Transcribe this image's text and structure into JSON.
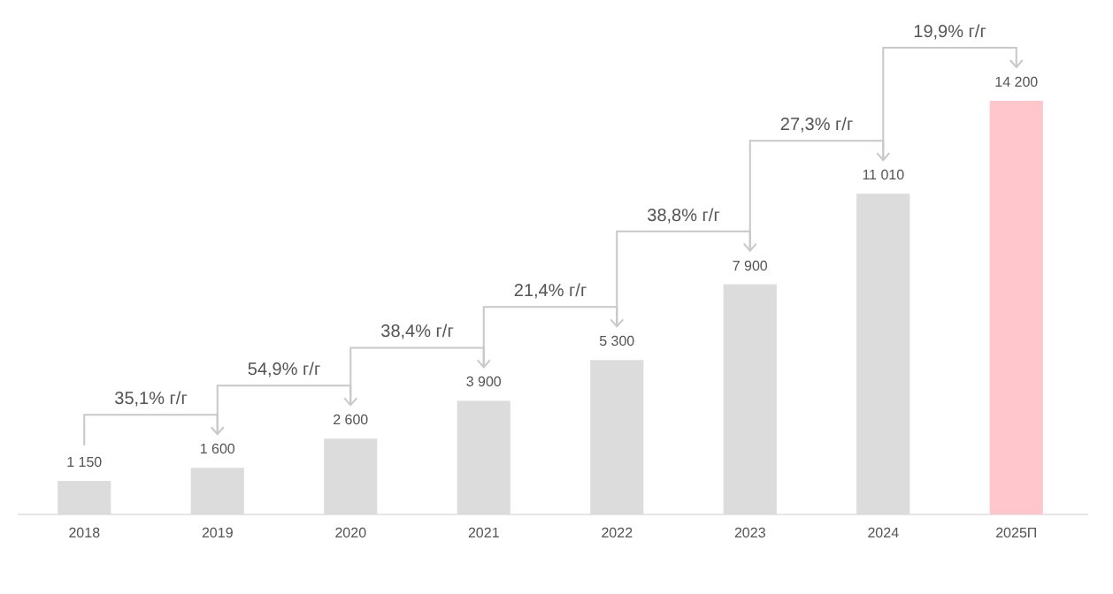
{
  "chart_data": {
    "type": "bar",
    "categories": [
      "2018",
      "2019",
      "2020",
      "2021",
      "2022",
      "2023",
      "2024",
      "2025П"
    ],
    "values": [
      1150,
      1600,
      2600,
      3900,
      5300,
      7900,
      11010,
      14200
    ],
    "colors": [
      "#dcdcdc",
      "#dcdcdc",
      "#dcdcdc",
      "#dcdcdc",
      "#dcdcdc",
      "#dcdcdc",
      "#dcdcdc",
      "#ffc7cc"
    ],
    "value_labels": [
      "1 150",
      "1 600",
      "2 600",
      "3 900",
      "5 300",
      "7 900",
      "11 010",
      "14 200"
    ],
    "annotations": [
      "35,1% г/г",
      "54,9% г/г",
      "38,4% г/г",
      "21,4% г/г",
      "38,8% г/г",
      "27,3% г/г",
      "19,9% г/г"
    ]
  }
}
